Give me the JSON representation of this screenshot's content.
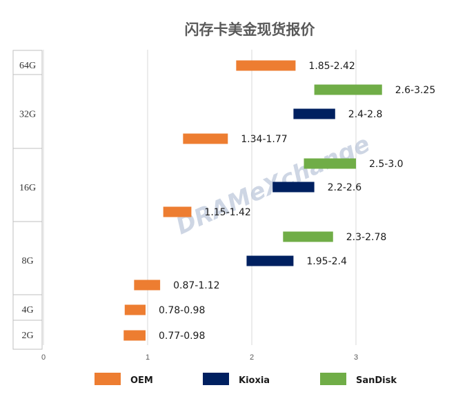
{
  "chart_data": {
    "type": "bar",
    "title": "闪存卡美金现货报价",
    "xlabel": "",
    "ylabel": "",
    "xlim": [
      0,
      4
    ],
    "x_ticks": [
      "0",
      "1",
      "2",
      "3"
    ],
    "grid": true,
    "legend_position": "bottom",
    "categories": [
      "64G",
      "32G",
      "16G",
      "8G",
      "4G",
      "2G"
    ],
    "series_styles": [
      {
        "name": "OEM",
        "color": "#ed7d31"
      },
      {
        "name": "Kioxia",
        "color": "#002060"
      },
      {
        "name": "SanDisk",
        "color": "#70ad47"
      }
    ],
    "rows": [
      {
        "category": "64G",
        "series": "OEM",
        "low": 1.85,
        "high": 2.42,
        "label": "1.85-2.42"
      },
      {
        "category": "32G",
        "series": "SanDisk",
        "low": 2.6,
        "high": 3.25,
        "label": "2.6-3.25"
      },
      {
        "category": "32G",
        "series": "Kioxia",
        "low": 2.4,
        "high": 2.8,
        "label": "2.4-2.8"
      },
      {
        "category": "32G",
        "series": "OEM",
        "low": 1.34,
        "high": 1.77,
        "label": "1.34-1.77"
      },
      {
        "category": "16G",
        "series": "SanDisk",
        "low": 2.5,
        "high": 3.0,
        "label": "2.5-3.0"
      },
      {
        "category": "16G",
        "series": "Kioxia",
        "low": 2.2,
        "high": 2.6,
        "label": "2.2-2.6"
      },
      {
        "category": "16G",
        "series": "OEM",
        "low": 1.15,
        "high": 1.42,
        "label": "1.15-1.42"
      },
      {
        "category": "8G",
        "series": "SanDisk",
        "low": 2.3,
        "high": 2.78,
        "label": "2.3-2.78"
      },
      {
        "category": "8G",
        "series": "Kioxia",
        "low": 1.95,
        "high": 2.4,
        "label": "1.95-2.4"
      },
      {
        "category": "8G",
        "series": "OEM",
        "low": 0.87,
        "high": 1.12,
        "label": "0.87-1.12"
      },
      {
        "category": "4G",
        "series": "OEM",
        "low": 0.78,
        "high": 0.98,
        "label": "0.78-0.98"
      },
      {
        "category": "2G",
        "series": "OEM",
        "low": 0.77,
        "high": 0.98,
        "label": "0.77-0.98"
      }
    ],
    "watermark": "DRAMeXchange"
  }
}
